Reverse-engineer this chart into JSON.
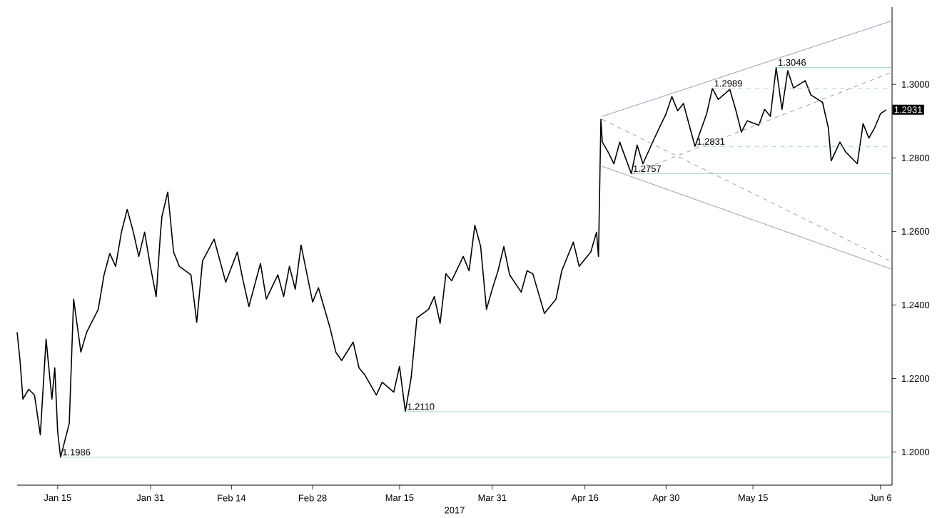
{
  "chart_data": {
    "type": "line",
    "xlabel": "2017",
    "x": [
      "2017-01-08T00:00",
      "2017-01-08T12:00",
      "2017-01-09",
      "2017-01-10",
      "2017-01-11",
      "2017-01-12",
      "2017-01-13",
      "2017-01-14",
      "2017-01-14T12:00",
      "2017-01-15",
      "2017-01-15T12:00",
      "2017-01-17",
      "2017-01-17T18:00",
      "2017-01-19",
      "2017-01-20",
      "2017-01-22",
      "2017-01-23",
      "2017-01-24",
      "2017-01-25",
      "2017-01-26",
      "2017-01-27",
      "2017-01-28",
      "2017-01-29",
      "2017-01-30",
      "2017-01-31",
      "2017-02-01",
      "2017-02-01T18:00",
      "2017-02-02",
      "2017-02-03",
      "2017-02-04",
      "2017-02-05",
      "2017-02-07",
      "2017-02-08",
      "2017-02-09",
      "2017-02-11",
      "2017-02-13",
      "2017-02-15",
      "2017-02-16",
      "2017-02-17",
      "2017-02-19",
      "2017-02-20",
      "2017-02-22",
      "2017-02-23",
      "2017-02-24",
      "2017-02-25",
      "2017-02-26",
      "2017-02-28",
      "2017-03-01",
      "2017-03-03",
      "2017-03-04",
      "2017-03-05",
      "2017-03-07",
      "2017-03-08",
      "2017-03-09",
      "2017-03-11",
      "2017-03-12",
      "2017-03-14",
      "2017-03-15",
      "2017-03-16",
      "2017-03-17",
      "2017-03-18",
      "2017-03-20",
      "2017-03-21",
      "2017-03-22",
      "2017-03-23",
      "2017-03-24",
      "2017-03-26",
      "2017-03-27",
      "2017-03-28",
      "2017-03-29",
      "2017-03-30",
      "2017-03-31",
      "2017-04-01",
      "2017-04-02",
      "2017-04-03",
      "2017-04-05",
      "2017-04-06",
      "2017-04-07",
      "2017-04-09",
      "2017-04-11",
      "2017-04-12",
      "2017-04-14",
      "2017-04-15",
      "2017-04-17",
      "2017-04-18",
      "2017-04-18T08:00",
      "2017-04-18T18:00",
      "2017-04-19",
      "2017-04-20",
      "2017-04-21",
      "2017-04-22",
      "2017-04-24",
      "2017-04-25",
      "2017-04-26",
      "2017-04-28",
      "2017-04-30",
      "2017-05-01",
      "2017-05-02",
      "2017-05-03",
      "2017-05-04",
      "2017-05-05",
      "2017-05-07",
      "2017-05-08",
      "2017-05-09",
      "2017-05-11",
      "2017-05-12",
      "2017-05-13",
      "2017-05-14",
      "2017-05-16",
      "2017-05-17",
      "2017-05-18",
      "2017-05-19",
      "2017-05-20",
      "2017-05-21",
      "2017-05-22",
      "2017-05-24",
      "2017-05-25",
      "2017-05-27",
      "2017-05-28",
      "2017-05-28T12:00",
      "2017-05-30",
      "2017-05-31",
      "2017-06-02",
      "2017-06-03",
      "2017-06-04",
      "2017-06-05",
      "2017-06-06",
      "2017-06-07"
    ],
    "series": [
      {
        "color": "#000000",
        "line_style": "solid",
        "values": [
          1.2326,
          1.2249,
          1.2144,
          1.2171,
          1.2155,
          1.2047,
          1.2307,
          1.2144,
          1.2229,
          1.2054,
          1.1986,
          1.2078,
          1.2416,
          1.2272,
          1.2326,
          1.2388,
          1.2482,
          1.254,
          1.2505,
          1.2598,
          1.266,
          1.2602,
          1.2532,
          1.2598,
          1.2505,
          1.2423,
          1.2598,
          1.2641,
          1.2707,
          1.2544,
          1.2505,
          1.2482,
          1.2353,
          1.252,
          1.2579,
          1.2462,
          1.2544,
          1.2466,
          1.2396,
          1.2513,
          1.2416,
          1.2482,
          1.2423,
          1.2505,
          1.2443,
          1.2563,
          1.2408,
          1.2447,
          1.2338,
          1.2272,
          1.2249,
          1.2299,
          1.2229,
          1.221,
          1.2155,
          1.219,
          1.2163,
          1.2233,
          1.211,
          1.2202,
          1.2365,
          1.2388,
          1.2423,
          1.235,
          1.2485,
          1.2466,
          1.2532,
          1.2493,
          1.2617,
          1.2559,
          1.2388,
          1.2443,
          1.2493,
          1.2559,
          1.2482,
          1.2435,
          1.2493,
          1.2485,
          1.2377,
          1.2416,
          1.2493,
          1.2571,
          1.2505,
          1.2544,
          1.2598,
          1.2532,
          1.2905,
          1.2843,
          1.2816,
          1.2784,
          1.2843,
          1.2757,
          1.2835,
          1.2784,
          1.2854,
          1.292,
          1.2967,
          1.2928,
          1.2948,
          1.2889,
          1.2831,
          1.292,
          1.2989,
          1.2959,
          1.2986,
          1.2932,
          1.287,
          1.2901,
          1.2889,
          1.2932,
          1.2913,
          1.3046,
          1.2932,
          1.3037,
          1.299,
          1.301,
          1.2971,
          1.2951,
          1.2882,
          1.2792,
          1.2843,
          1.2816,
          1.2784,
          1.2893,
          1.2854,
          1.2882,
          1.292,
          1.2931
        ]
      },
      {
        "color": "#a8d8b8",
        "line_style": "solid",
        "x": [
          "2017-01-15T12:00",
          "2017-06-08"
        ],
        "values": [
          1.1986,
          1.1986
        ]
      },
      {
        "color": "#a8d8b8",
        "line_style": "solid",
        "x": [
          "2017-03-16",
          "2017-06-08"
        ],
        "values": [
          1.211,
          1.211
        ]
      },
      {
        "color": "#a8d8b8",
        "line_style": "solid",
        "x": [
          "2017-04-24",
          "2017-06-08"
        ],
        "values": [
          1.2757,
          1.2757
        ]
      },
      {
        "color": "#a8d8b8",
        "line_style": "dashed",
        "x": [
          "2017-05-05",
          "2017-06-08"
        ],
        "values": [
          1.2831,
          1.2831
        ]
      },
      {
        "color": "#a8d8b8",
        "line_style": "dashed",
        "x": [
          "2017-05-08",
          "2017-06-08"
        ],
        "values": [
          1.2989,
          1.2989
        ]
      },
      {
        "color": "#a8d8b8",
        "line_style": "solid",
        "x": [
          "2017-05-19",
          "2017-06-08"
        ],
        "values": [
          1.3046,
          1.3046
        ]
      },
      {
        "color": "#9a9ab8",
        "line_style": "solid",
        "x": [
          "2017-04-19",
          "2017-06-08"
        ],
        "values": [
          1.2913,
          1.3173
        ]
      },
      {
        "color": "#9a9ab8",
        "line_style": "solid",
        "x": [
          "2017-04-19",
          "2017-06-08"
        ],
        "values": [
          1.2777,
          1.2497
        ]
      },
      {
        "color": "#999999",
        "line_style": "dashed",
        "x": [
          "2017-04-19",
          "2017-06-08"
        ],
        "values": [
          1.2905,
          1.2517
        ]
      },
      {
        "color": "#999999",
        "line_style": "dashed",
        "x": [
          "2017-04-24",
          "2017-06-08"
        ],
        "values": [
          1.2757,
          1.3033
        ]
      }
    ],
    "xlim": [
      "2017-01-08",
      "2017-06-08"
    ],
    "xticks": [
      {
        "value": "2017-01-15",
        "label": "Jan 15"
      },
      {
        "value": "2017-01-31",
        "label": "Jan 31"
      },
      {
        "value": "2017-02-14",
        "label": "Feb 14"
      },
      {
        "value": "2017-02-28",
        "label": "Feb 28"
      },
      {
        "value": "2017-03-15",
        "label": "Mar 15"
      },
      {
        "value": "2017-03-31",
        "label": "Mar 31"
      },
      {
        "value": "2017-04-16",
        "label": "Apr 16"
      },
      {
        "value": "2017-04-30",
        "label": "Apr 30"
      },
      {
        "value": "2017-05-15",
        "label": "May 15"
      },
      {
        "value": "2017-06-06",
        "label": "Jun 6"
      }
    ],
    "ylim": [
      1.191,
      1.321
    ],
    "yticks": [
      {
        "value": 1.2,
        "label": "1.2000"
      },
      {
        "value": 1.22,
        "label": "1.2200"
      },
      {
        "value": 1.24,
        "label": "1.2400"
      },
      {
        "value": 1.26,
        "label": "1.2600"
      },
      {
        "value": 1.28,
        "label": "1.2800"
      },
      {
        "value": 1.3,
        "label": "1.3000"
      }
    ],
    "annotations": [
      {
        "text": "1.1986",
        "x": "2017-01-15T12:00",
        "y": 1.1986
      },
      {
        "text": "1.2110",
        "x": "2017-03-16",
        "y": 1.211
      },
      {
        "text": "1.2757",
        "x": "2017-04-24",
        "y": 1.2757
      },
      {
        "text": "1.2831",
        "x": "2017-05-05",
        "y": 1.2831
      },
      {
        "text": "1.2989",
        "x": "2017-05-08",
        "y": 1.2989
      },
      {
        "text": "1.3046",
        "x": "2017-05-19",
        "y": 1.3046
      },
      {
        "text": "1.2931",
        "x": "2017-06-08",
        "y": 1.2931
      }
    ]
  }
}
